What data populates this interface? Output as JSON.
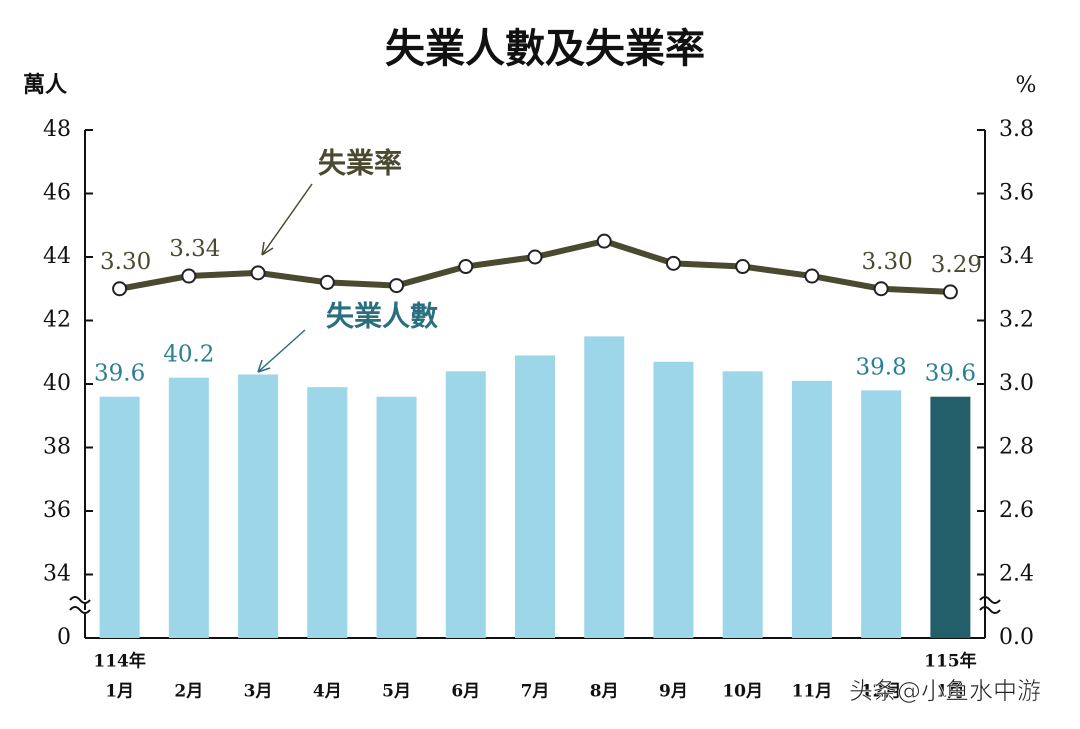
{
  "chart_data": {
    "type": "bar_line",
    "title": "失業人數及失業率",
    "y_unit": "萬人",
    "y2_unit": "%",
    "categories": [
      "1月",
      "2月",
      "3月",
      "4月",
      "5月",
      "6月",
      "7月",
      "8月",
      "9月",
      "10月",
      "11月",
      "12月",
      "1月"
    ],
    "x_group_labels": [
      "114年",
      null,
      null,
      null,
      null,
      null,
      null,
      null,
      null,
      null,
      null,
      null,
      "115年"
    ],
    "series": [
      {
        "name": "失業人數",
        "type": "bar",
        "axis": "y",
        "color": "#9dd6e8",
        "label_color": "#2a7f95",
        "colors": [
          "#9dd6e8",
          "#9dd6e8",
          "#9dd6e8",
          "#9dd6e8",
          "#9dd6e8",
          "#9dd6e8",
          "#9dd6e8",
          "#9dd6e8",
          "#9dd6e8",
          "#9dd6e8",
          "#9dd6e8",
          "#9dd6e8",
          "#235e6b"
        ],
        "values": [
          39.6,
          40.2,
          40.3,
          39.9,
          39.6,
          40.4,
          40.9,
          41.5,
          40.7,
          40.4,
          40.1,
          39.8,
          39.6
        ],
        "value_labels": [
          "39.6",
          "40.2",
          null,
          null,
          null,
          null,
          null,
          null,
          null,
          null,
          null,
          "39.8",
          "39.6"
        ]
      },
      {
        "name": "失業率",
        "type": "line",
        "axis": "y2",
        "color": "#4a4a30",
        "label_color": "#4a4a30",
        "values": [
          3.3,
          3.34,
          3.35,
          3.32,
          3.31,
          3.37,
          3.4,
          3.45,
          3.38,
          3.37,
          3.34,
          3.3,
          3.29
        ],
        "value_labels": [
          "3.30",
          "3.34",
          null,
          null,
          null,
          null,
          null,
          null,
          null,
          null,
          null,
          "3.30",
          "3.29"
        ]
      }
    ],
    "ylim": [
      0,
      48
    ],
    "yticks": [
      0,
      34,
      36,
      38,
      40,
      42,
      44,
      46,
      48
    ],
    "y2lim": [
      0,
      3.8
    ],
    "y2ticks": [
      {
        "value": 0,
        "label": "0.0"
      },
      2.4,
      2.6,
      2.8,
      {
        "value": 3,
        "label": "3.0"
      },
      3.2,
      3.4,
      3.6,
      3.8
    ],
    "axis_break": true,
    "grid": false,
    "watermark": "头条@小鱼水中游"
  }
}
